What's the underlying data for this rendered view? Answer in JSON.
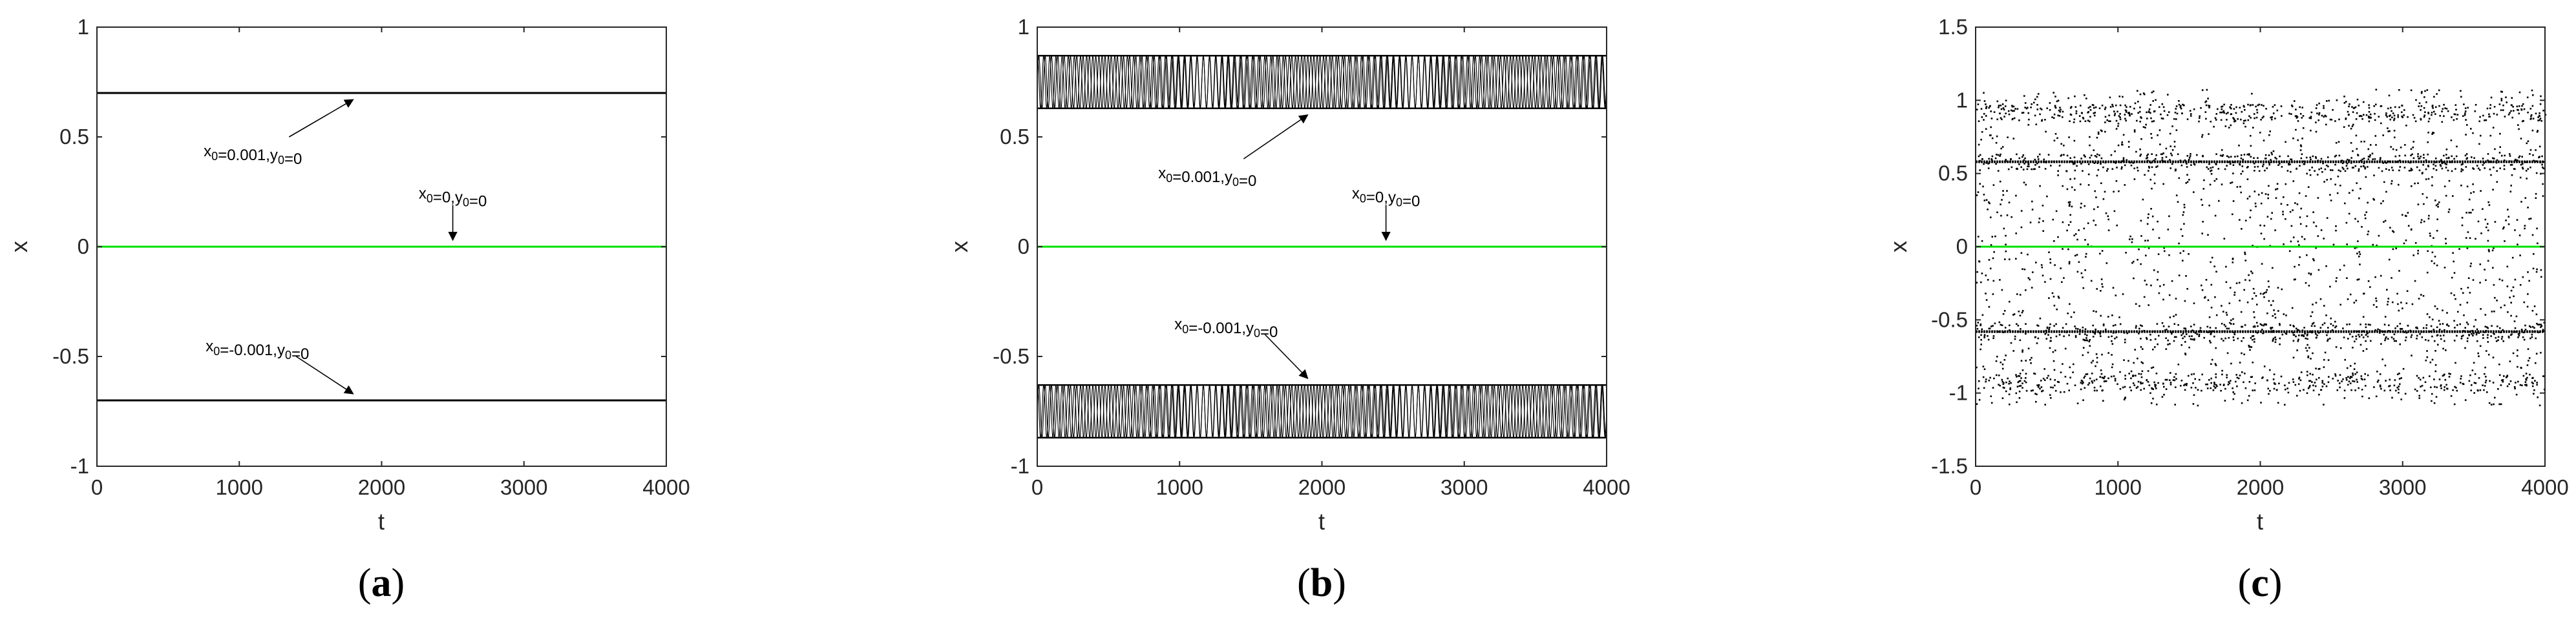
{
  "chart_data": [
    {
      "panel": "a",
      "type": "line",
      "xlabel": "t",
      "ylabel": "x",
      "xlim": [
        0,
        4000
      ],
      "ylim": [
        -1,
        1
      ],
      "xticks": [
        "0",
        "1000",
        "2000",
        "3000",
        "4000"
      ],
      "yticks": [
        "-1",
        "-0.5",
        "0",
        "0.5",
        "1"
      ],
      "grid": false,
      "series": [
        {
          "x": [
            0,
            4000
          ],
          "y": [
            0.7,
            0.7
          ],
          "color": "#000000",
          "style": "line"
        },
        {
          "x": [
            0,
            4000
          ],
          "y": [
            0,
            0
          ],
          "color": "#00e000",
          "style": "line"
        },
        {
          "x": [
            0,
            4000
          ],
          "y": [
            -0.7,
            -0.7
          ],
          "color": "#000000",
          "style": "line"
        }
      ],
      "annotations": [
        {
          "text": "x",
          "sub": "0",
          "text2": "=0.001,y",
          "sub2": "0",
          "text3": "=0",
          "point": [
            1800,
            0.67
          ],
          "tail": [
            1350,
            0.5
          ]
        },
        {
          "text": "x",
          "sub": "0",
          "text2": "=0,y",
          "sub2": "0",
          "text3": "=0",
          "point": [
            2500,
            0.03
          ],
          "tail": [
            2500,
            0.19
          ]
        },
        {
          "text": "x",
          "sub": "0",
          "text2": "=-0.001,y",
          "sub2": "0",
          "text3": "=0",
          "point": [
            1800,
            -0.67
          ],
          "tail": [
            1400,
            -0.5
          ]
        }
      ]
    },
    {
      "panel": "b",
      "type": "line",
      "xlabel": "t",
      "ylabel": "x",
      "xlim": [
        0,
        4000
      ],
      "ylim": [
        -1,
        1
      ],
      "xticks": [
        "0",
        "1000",
        "2000",
        "3000",
        "4000"
      ],
      "yticks": [
        "-1",
        "-0.5",
        "0",
        "0.5",
        "1"
      ],
      "grid": false,
      "series": [
        {
          "x": [
            0,
            4000
          ],
          "y_band": [
            0.63,
            0.87
          ],
          "color": "#000000",
          "style": "oscillation"
        },
        {
          "x": [
            0,
            4000
          ],
          "y": [
            0,
            0
          ],
          "color": "#00e000",
          "style": "line"
        },
        {
          "x": [
            0,
            4000
          ],
          "y_band": [
            -0.87,
            -0.63
          ],
          "color": "#000000",
          "style": "oscillation"
        }
      ],
      "annotations": [
        {
          "text": "x",
          "sub": "0",
          "text2": "=0.001,y",
          "sub2": "0",
          "text3": "=0",
          "point": [
            1900,
            0.6
          ],
          "tail": [
            1450,
            0.4
          ]
        },
        {
          "text": "x",
          "sub": "0",
          "text2": "=0,y",
          "sub2": "0",
          "text3": "=0",
          "point": [
            2450,
            0.03
          ],
          "tail": [
            2450,
            0.19
          ]
        },
        {
          "text": "x",
          "sub": "0",
          "text2": "=-0.001,y",
          "sub2": "0",
          "text3": "=0",
          "point": [
            1900,
            -0.6
          ],
          "tail": [
            1600,
            -0.4
          ]
        }
      ]
    },
    {
      "panel": "c",
      "type": "scatter",
      "xlabel": "t",
      "ylabel": "x",
      "xlim": [
        0,
        4000
      ],
      "ylim": [
        -1.5,
        1.5
      ],
      "xticks": [
        "0",
        "1000",
        "2000",
        "3000",
        "4000"
      ],
      "yticks": [
        "-1.5",
        "-1",
        "-0.5",
        "0",
        "0.5",
        "1",
        "1.5"
      ],
      "grid": false,
      "series": [
        {
          "x_range": [
            0,
            4000
          ],
          "y_range": [
            -1.08,
            1.08
          ],
          "dense_rows": [
            0.58,
            -0.58,
            0.92,
            -0.92
          ],
          "color": "#000000",
          "style": "points"
        },
        {
          "x": [
            0,
            4000
          ],
          "y": [
            0,
            0
          ],
          "color": "#00e000",
          "style": "line"
        }
      ],
      "annotations": []
    }
  ],
  "panel_labels": [
    {
      "open": "(",
      "letter": "a",
      "close": ")"
    },
    {
      "open": "(",
      "letter": "b",
      "close": ")"
    },
    {
      "open": "(",
      "letter": "c",
      "close": ")"
    }
  ]
}
